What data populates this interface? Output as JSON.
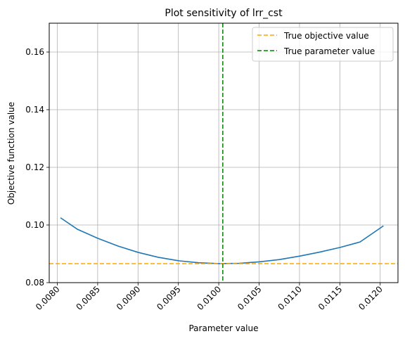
{
  "chart_data": {
    "type": "line",
    "title": "Plot sensitivity of lrr_cst",
    "xlabel": "Parameter value",
    "ylabel": "Objective function value",
    "xlim": [
      0.0079,
      0.01222
    ],
    "ylim": [
      0.08,
      0.17
    ],
    "grid": true,
    "legend_position": "top-right",
    "x_ticks": [
      0.008,
      0.0085,
      0.009,
      0.0095,
      0.01,
      0.0105,
      0.011,
      0.0115,
      0.012
    ],
    "x_tick_labels": [
      "0.0080",
      "0.0085",
      "0.0090",
      "0.0095",
      "0.0100",
      "0.0105",
      "0.0110",
      "0.0115",
      "0.0120"
    ],
    "y_ticks": [
      0.08,
      0.1,
      0.12,
      0.14,
      0.16
    ],
    "y_tick_labels": [
      "0.08",
      "0.10",
      "0.12",
      "0.14",
      "0.16"
    ],
    "series": [
      {
        "color": "#1f77b4",
        "x": [
          0.00804,
          0.00825,
          0.0085,
          0.00875,
          0.009,
          0.00925,
          0.0095,
          0.00975,
          0.01,
          0.01025,
          0.0105,
          0.01075,
          0.011,
          0.01125,
          0.0115,
          0.01175,
          0.01204
        ],
        "y": [
          0.1025,
          0.0985,
          0.0954,
          0.0927,
          0.0905,
          0.0888,
          0.0876,
          0.0869,
          0.0866,
          0.0867,
          0.0872,
          0.088,
          0.0892,
          0.0906,
          0.0922,
          0.0941,
          0.0997
        ]
      }
    ],
    "reference_lines": [
      {
        "orientation": "horizontal",
        "value": 0.0866,
        "color": "#ffa500",
        "style": "dashed",
        "label": "True objective value"
      },
      {
        "orientation": "vertical",
        "value": 0.01005,
        "color": "#008000",
        "style": "dashed",
        "label": "True parameter value"
      }
    ]
  }
}
